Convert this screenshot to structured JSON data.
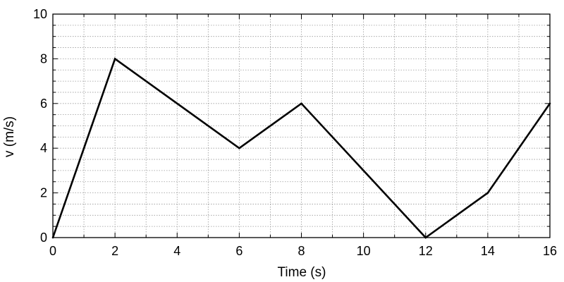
{
  "chart_data": {
    "type": "line",
    "title": "",
    "xlabel": "Time (s)",
    "ylabel": "v (m/s)",
    "xlim": [
      0,
      16
    ],
    "ylim": [
      0,
      10
    ],
    "x_major_ticks": [
      0,
      2,
      4,
      6,
      8,
      10,
      12,
      14,
      16
    ],
    "y_major_ticks": [
      0,
      2,
      4,
      6,
      8,
      10
    ],
    "x_tick_labels": [
      "0",
      "2",
      "4",
      "6",
      "8",
      "10",
      "12",
      "14",
      "16"
    ],
    "y_tick_labels": [
      "0",
      "2",
      "4",
      "6",
      "8",
      "10"
    ],
    "x_minor_step": 1,
    "y_minor_step": 0.5,
    "grid": true,
    "grid_style": "dotted",
    "line_color": "#000000",
    "series": [
      {
        "x": [
          0,
          2,
          6,
          8,
          12,
          14,
          16
        ],
        "values": [
          0,
          8,
          4,
          6,
          0,
          2,
          6
        ]
      }
    ]
  }
}
